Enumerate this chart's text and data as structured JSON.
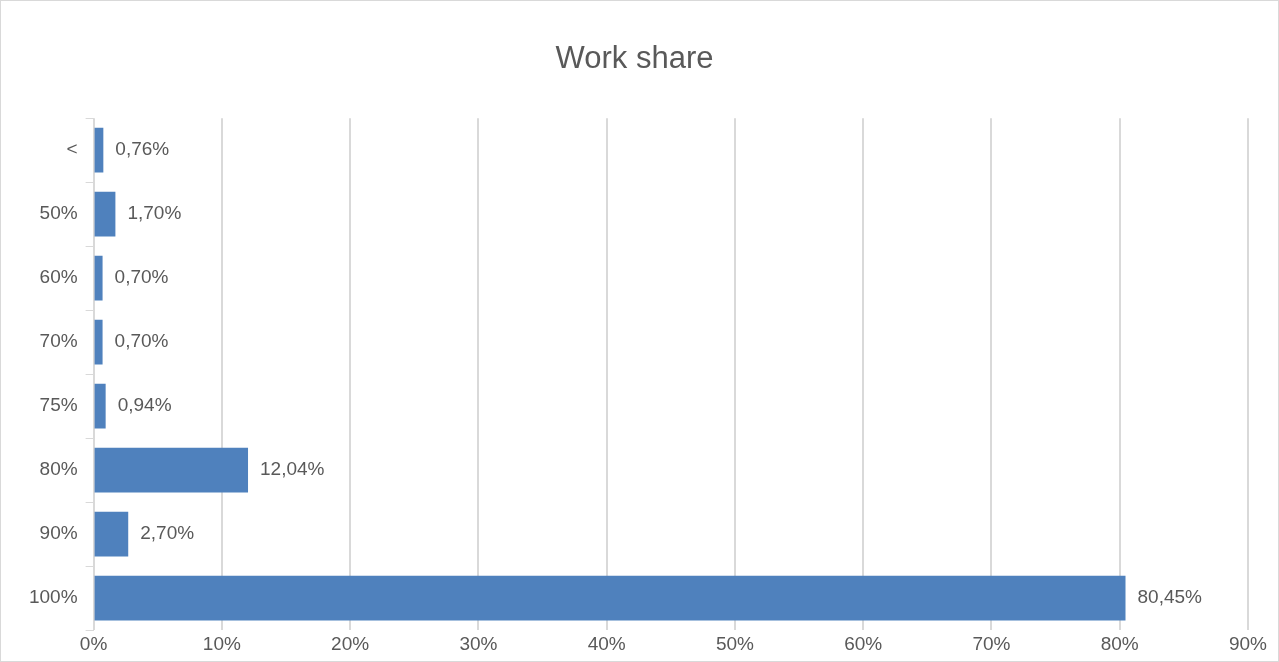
{
  "chart_data": {
    "type": "bar",
    "orientation": "horizontal",
    "title": "Work share",
    "categories": [
      "<",
      "50%",
      "60%",
      "70%",
      "75%",
      "80%",
      "90%",
      "100%"
    ],
    "values": [
      0.76,
      1.7,
      0.7,
      0.7,
      0.94,
      12.04,
      2.7,
      80.45
    ],
    "value_labels": [
      "0,76%",
      "1,70%",
      "0,70%",
      "0,70%",
      "0,94%",
      "12,04%",
      "2,70%",
      "80,45%"
    ],
    "color": "#4f81bd",
    "xlim": [
      0,
      90
    ],
    "xticks": [
      {
        "value": 0,
        "label": "0%"
      },
      {
        "value": 10,
        "label": "10%"
      },
      {
        "value": 20,
        "label": "20%"
      },
      {
        "value": 30,
        "label": "30%"
      },
      {
        "value": 40,
        "label": "40%"
      },
      {
        "value": 50,
        "label": "50%"
      },
      {
        "value": 60,
        "label": "60%"
      },
      {
        "value": 70,
        "label": "70%"
      },
      {
        "value": 80,
        "label": "80%"
      },
      {
        "value": 90,
        "label": "90%"
      }
    ],
    "grid": "x",
    "legend": false
  }
}
